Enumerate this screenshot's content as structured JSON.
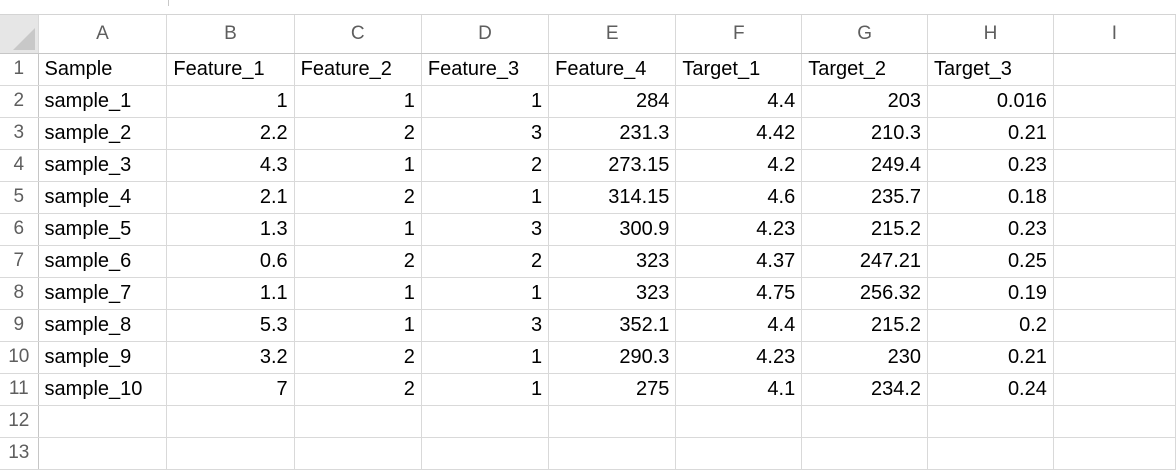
{
  "sheet": {
    "column_headers": [
      "A",
      "B",
      "C",
      "D",
      "E",
      "F",
      "G",
      "H",
      "I"
    ],
    "row_numbers": [
      "1",
      "2",
      "3",
      "4",
      "5",
      "6",
      "7",
      "8",
      "9",
      "10",
      "11",
      "12",
      "13"
    ],
    "rows": [
      [
        "Sample",
        "Feature_1",
        "Feature_2",
        "Feature_3",
        "Feature_4",
        "Target_1",
        "Target_2",
        "Target_3",
        ""
      ],
      [
        "sample_1",
        "1",
        "1",
        "1",
        "284",
        "4.4",
        "203",
        "0.016",
        ""
      ],
      [
        "sample_2",
        "2.2",
        "2",
        "3",
        "231.3",
        "4.42",
        "210.3",
        "0.21",
        ""
      ],
      [
        "sample_3",
        "4.3",
        "1",
        "2",
        "273.15",
        "4.2",
        "249.4",
        "0.23",
        ""
      ],
      [
        "sample_4",
        "2.1",
        "2",
        "1",
        "314.15",
        "4.6",
        "235.7",
        "0.18",
        ""
      ],
      [
        "sample_5",
        "1.3",
        "1",
        "3",
        "300.9",
        "4.23",
        "215.2",
        "0.23",
        ""
      ],
      [
        "sample_6",
        "0.6",
        "2",
        "2",
        "323",
        "4.37",
        "247.21",
        "0.25",
        ""
      ],
      [
        "sample_7",
        "1.1",
        "1",
        "1",
        "323",
        "4.75",
        "256.32",
        "0.19",
        ""
      ],
      [
        "sample_8",
        "5.3",
        "1",
        "3",
        "352.1",
        "4.4",
        "215.2",
        "0.2",
        ""
      ],
      [
        "sample_9",
        "3.2",
        "2",
        "1",
        "290.3",
        "4.23",
        "230",
        "0.21",
        ""
      ],
      [
        "sample_10",
        "7",
        "2",
        "1",
        "275",
        "4.1",
        "234.2",
        "0.24",
        ""
      ],
      [
        "",
        "",
        "",
        "",
        "",
        "",
        "",
        "",
        ""
      ],
      [
        "",
        "",
        "",
        "",
        "",
        "",
        "",
        "",
        ""
      ]
    ]
  }
}
